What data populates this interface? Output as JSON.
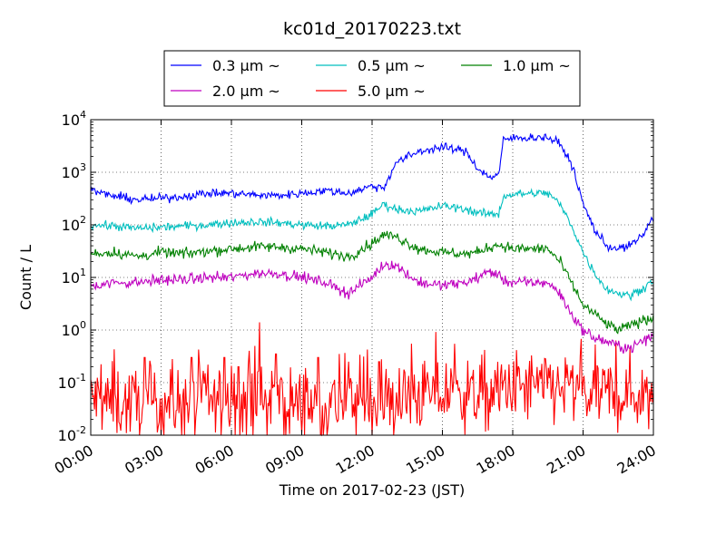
{
  "chart_data": {
    "type": "line",
    "title": "kc01d_20170223.txt",
    "xlabel": "Time on 2017-02-23 (JST)",
    "ylabel": "Count / L",
    "y_scale": "log",
    "ylim": [
      0.01,
      10000
    ],
    "xlim": [
      "00:00",
      "24:00"
    ],
    "x_tick_labels": [
      "00:00",
      "03:00",
      "06:00",
      "09:00",
      "12:00",
      "15:00",
      "18:00",
      "21:00",
      "24:00"
    ],
    "y_tick_labels": [
      {
        "base": "10",
        "exp": "-2"
      },
      {
        "base": "10",
        "exp": "-1"
      },
      {
        "base": "10",
        "exp": "0"
      },
      {
        "base": "10",
        "exp": "1"
      },
      {
        "base": "10",
        "exp": "2"
      },
      {
        "base": "10",
        "exp": "3"
      },
      {
        "base": "10",
        "exp": "4"
      }
    ],
    "grid": true,
    "legend_position": "top-center",
    "x_hours": [
      0,
      1,
      2,
      3,
      4,
      5,
      6,
      7,
      8,
      9,
      10,
      11,
      12,
      12.5,
      13,
      14,
      15,
      16,
      16.5,
      17,
      17.4,
      17.6,
      18,
      19,
      19.5,
      20,
      20.5,
      21,
      21.5,
      22,
      22.5,
      23,
      23.5,
      24
    ],
    "series": [
      {
        "name": "0.3 μm ~",
        "color": "#0000ff",
        "noise": 0.04,
        "values": [
          450,
          350,
          300,
          320,
          350,
          400,
          400,
          370,
          360,
          400,
          450,
          400,
          550,
          500,
          1500,
          2500,
          3000,
          2500,
          1200,
          800,
          900,
          4000,
          4500,
          4600,
          4600,
          3500,
          1500,
          250,
          80,
          40,
          35,
          40,
          60,
          140
        ]
      },
      {
        "name": "0.5 μm ~",
        "color": "#00bfbf",
        "noise": 0.04,
        "values": [
          100,
          95,
          85,
          90,
          95,
          100,
          110,
          115,
          110,
          100,
          95,
          100,
          160,
          250,
          200,
          180,
          230,
          200,
          170,
          160,
          160,
          350,
          380,
          400,
          400,
          250,
          100,
          30,
          12,
          6,
          5,
          4.5,
          6,
          9
        ]
      },
      {
        "name": "1.0 μm ~",
        "color": "#008000",
        "noise": 0.05,
        "values": [
          28,
          30,
          25,
          30,
          28,
          32,
          35,
          38,
          38,
          35,
          30,
          25,
          45,
          65,
          60,
          35,
          30,
          28,
          30,
          38,
          42,
          40,
          35,
          35,
          35,
          20,
          8,
          3,
          2,
          1.3,
          1.0,
          1.2,
          1.5,
          1.7
        ]
      },
      {
        "name": "2.0 μm ~",
        "color": "#bf00bf",
        "noise": 0.05,
        "values": [
          7,
          8,
          8,
          9,
          9,
          10,
          10,
          12,
          12,
          10,
          8,
          5,
          10,
          18,
          17,
          8,
          7,
          8,
          10,
          13,
          11,
          9,
          8,
          8,
          8,
          5,
          2,
          1,
          0.7,
          0.6,
          0.5,
          0.45,
          0.6,
          0.8
        ]
      },
      {
        "name": "5.0 μm ~",
        "color": "#ff0000",
        "noise": 0.35,
        "floor": 0.01,
        "values": [
          0.05,
          0.04,
          0.04,
          0.04,
          0.04,
          0.04,
          0.04,
          0.04,
          0.04,
          0.04,
          0.04,
          0.04,
          0.04,
          0.04,
          0.04,
          0.06,
          0.06,
          0.06,
          0.06,
          0.06,
          0.06,
          0.08,
          0.08,
          0.08,
          0.08,
          0.08,
          0.08,
          0.06,
          0.06,
          0.06,
          0.06,
          0.06,
          0.06,
          0.06
        ],
        "spikes": [
          [
            1.0,
            0.43
          ],
          [
            2.3,
            0.3
          ],
          [
            3.4,
            0.18
          ],
          [
            4.3,
            0.3
          ],
          [
            5.0,
            0.22
          ],
          [
            5.7,
            0.3
          ],
          [
            6.3,
            0.2
          ],
          [
            7.0,
            0.5
          ],
          [
            7.2,
            1.4
          ],
          [
            7.9,
            0.35
          ],
          [
            9.7,
            0.3
          ],
          [
            10.6,
            0.35
          ],
          [
            11.0,
            0.25
          ],
          [
            12.3,
            0.25
          ],
          [
            19.6,
            0.22
          ]
        ]
      }
    ]
  }
}
